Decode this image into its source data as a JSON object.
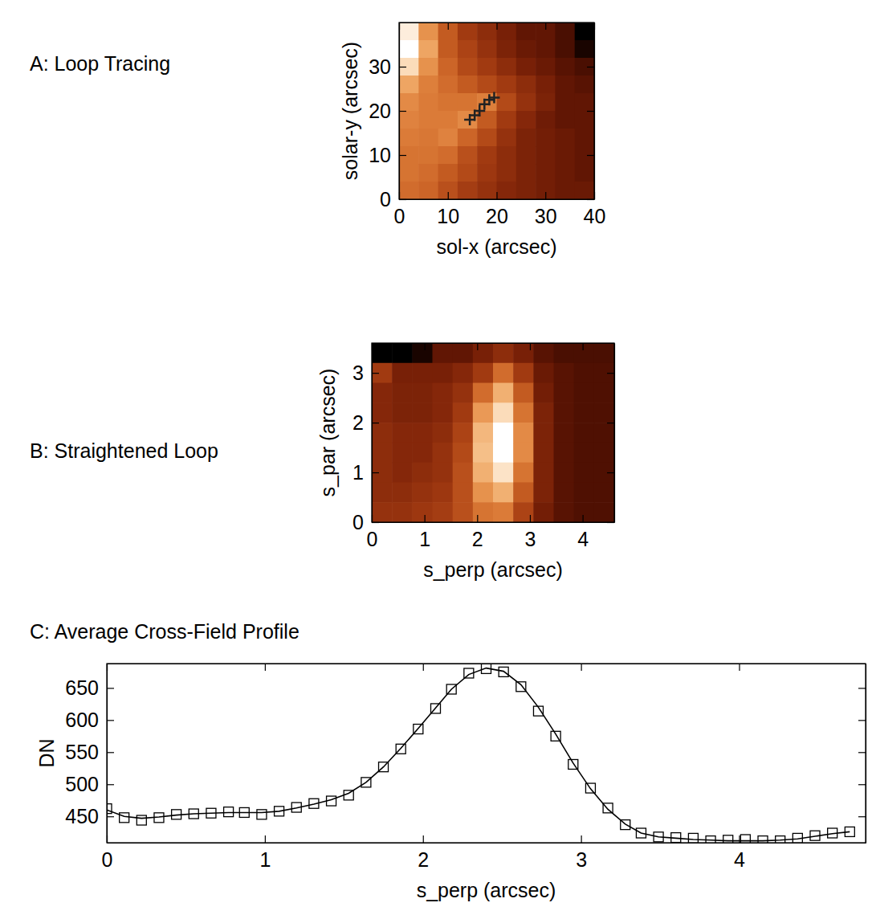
{
  "chart_data": [
    {
      "type": "heatmap",
      "title": "A: Loop Tracing",
      "xlabel": "sol-x (arcsec)",
      "ylabel": "solar-y (arcsec)",
      "xlim": [
        0,
        40
      ],
      "ylim": [
        0,
        40
      ],
      "xticks": [
        0,
        10,
        20,
        30,
        40
      ],
      "yticks": [
        0,
        10,
        20,
        30
      ],
      "cells": [
        [
          95,
          70,
          55,
          45,
          40,
          35,
          30,
          30,
          25,
          10
        ],
        [
          100,
          75,
          55,
          48,
          42,
          36,
          32,
          30,
          25,
          15
        ],
        [
          90,
          70,
          58,
          50,
          45,
          40,
          35,
          32,
          28,
          25
        ],
        [
          75,
          65,
          60,
          55,
          50,
          45,
          40,
          35,
          30,
          28
        ],
        [
          68,
          64,
          62,
          62,
          65,
          50,
          42,
          36,
          30,
          30
        ],
        [
          66,
          64,
          64,
          68,
          55,
          45,
          38,
          33,
          30,
          30
        ],
        [
          64,
          63,
          66,
          58,
          50,
          42,
          36,
          34,
          32,
          30
        ],
        [
          62,
          62,
          60,
          52,
          45,
          40,
          36,
          34,
          32,
          30
        ],
        [
          62,
          60,
          55,
          50,
          44,
          40,
          36,
          34,
          32,
          30
        ],
        [
          60,
          58,
          52,
          46,
          42,
          38,
          36,
          34,
          32,
          32
        ]
      ],
      "series": [
        {
          "type": "scatter",
          "marker": "plus",
          "x": [
            14.5,
            15.5,
            16.5,
            17.5,
            18.5,
            19.5
          ],
          "values": [
            18,
            19,
            20,
            21.5,
            22.5,
            23
          ]
        }
      ]
    },
    {
      "type": "heatmap",
      "title": "B: Straightened Loop",
      "xlabel": "s_perp (arcsec)",
      "ylabel": "s_par (arcsec)",
      "xlim": [
        0,
        4.6
      ],
      "ylim": [
        0,
        3.6
      ],
      "xticks": [
        0,
        1,
        2,
        3,
        4
      ],
      "yticks": [
        0,
        1,
        2,
        3
      ],
      "cells": [
        [
          10,
          10,
          15,
          30,
          30,
          35,
          40,
          35,
          28,
          25,
          25,
          25
        ],
        [
          45,
          35,
          35,
          35,
          38,
          45,
          60,
          45,
          32,
          28,
          26,
          26
        ],
        [
          38,
          36,
          36,
          38,
          42,
          60,
          78,
          55,
          34,
          28,
          26,
          26
        ],
        [
          38,
          36,
          36,
          38,
          45,
          72,
          90,
          62,
          36,
          28,
          26,
          26
        ],
        [
          40,
          38,
          38,
          40,
          48,
          80,
          100,
          68,
          36,
          28,
          26,
          26
        ],
        [
          40,
          38,
          38,
          42,
          50,
          82,
          100,
          68,
          36,
          28,
          26,
          26
        ],
        [
          40,
          38,
          40,
          42,
          52,
          78,
          92,
          62,
          36,
          28,
          26,
          26
        ],
        [
          40,
          40,
          42,
          44,
          52,
          70,
          78,
          55,
          36,
          28,
          26,
          26
        ],
        [
          42,
          42,
          44,
          46,
          52,
          62,
          64,
          48,
          34,
          28,
          26,
          26
        ]
      ]
    },
    {
      "type": "line",
      "title": "C: Average Cross-Field Profile",
      "xlabel": "s_perp (arcsec)",
      "ylabel": "DN",
      "xlim": [
        0,
        4.8
      ],
      "ylim": [
        409,
        688
      ],
      "xticks": [
        0,
        1,
        2,
        3,
        4
      ],
      "yticks": [
        450,
        500,
        550,
        600,
        650
      ],
      "x": [
        0.0,
        0.11,
        0.22,
        0.33,
        0.44,
        0.55,
        0.66,
        0.77,
        0.87,
        0.98,
        1.09,
        1.2,
        1.31,
        1.42,
        1.53,
        1.64,
        1.75,
        1.86,
        1.97,
        2.08,
        2.18,
        2.29,
        2.4,
        2.51,
        2.62,
        2.73,
        2.84,
        2.95,
        3.06,
        3.17,
        3.28,
        3.38,
        3.49,
        3.6,
        3.71,
        3.82,
        3.93,
        4.04,
        4.15,
        4.26,
        4.37,
        4.48,
        4.59,
        4.7
      ],
      "series": [
        {
          "type": "scatter",
          "marker": "square",
          "values": [
            462,
            448,
            444,
            448,
            453,
            454,
            455,
            457,
            456,
            453,
            458,
            464,
            470,
            474,
            483,
            503,
            527,
            555,
            586,
            618,
            648,
            673,
            680,
            675,
            652,
            614,
            575,
            531,
            494,
            463,
            437,
            424,
            418,
            417,
            416,
            412,
            413,
            414,
            412,
            412,
            416,
            420,
            424,
            426
          ]
        },
        {
          "type": "line",
          "line_style": "solid",
          "values": [
            460,
            450,
            447,
            449,
            452,
            454,
            455,
            456,
            456,
            456,
            458,
            463,
            469,
            476,
            486,
            503,
            527,
            556,
            587,
            619,
            648,
            671,
            681,
            676,
            655,
            620,
            578,
            533,
            493,
            461,
            438,
            424,
            418,
            416,
            414,
            413,
            412,
            412,
            412,
            413,
            415,
            419,
            423,
            426
          ]
        }
      ]
    }
  ]
}
